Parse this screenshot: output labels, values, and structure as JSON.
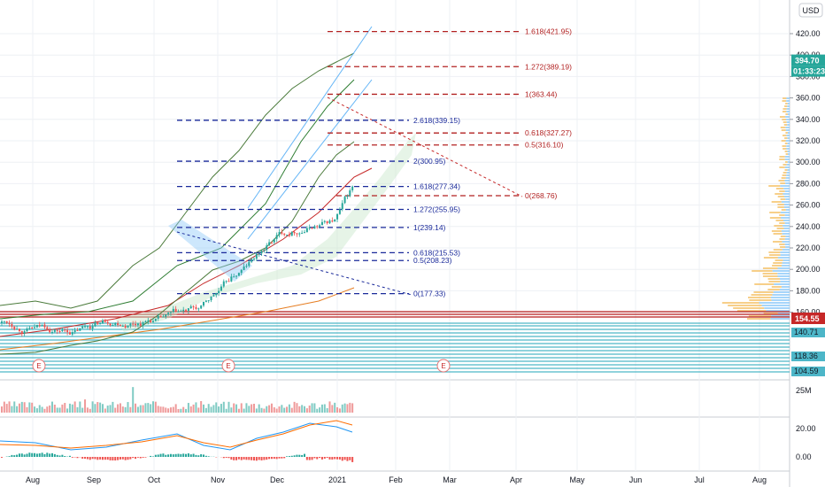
{
  "currency_label": "USD",
  "price_axis": {
    "ticks": [
      "420.00",
      "400.00",
      "380.00",
      "360.00",
      "340.00",
      "320.00",
      "300.00",
      "280.00",
      "260.00",
      "240.00",
      "220.00",
      "200.00",
      "180.00",
      "160.00"
    ],
    "tag_last": "394.70",
    "tag_timer": "01:33:23",
    "tag_level_mid": "154.55",
    "profile_labels": [
      "140.71",
      "118.36",
      "104.59"
    ]
  },
  "volume_axis": {
    "tick": "25M"
  },
  "macd_axis": {
    "ticks": [
      "20.00",
      "0.00"
    ]
  },
  "x_axis": {
    "labels": [
      "Aug",
      "Sep",
      "Oct",
      "Nov",
      "Dec",
      "2021",
      "Feb",
      "Mar",
      "Apr",
      "May",
      "Jun",
      "Jul",
      "Aug"
    ]
  },
  "events": [
    "E",
    "E",
    "E"
  ],
  "colors": {
    "up": "#26a69a",
    "down": "#ef5350",
    "fib_red": "#b22222",
    "fib_blue": "#1a2a9a",
    "bb": "#4a7a3a",
    "channel": "#64b5f6"
  },
  "chart_data": {
    "type": "candlestick",
    "fib_red": [
      {
        "label": "1.618(421.95)",
        "value": 421.95
      },
      {
        "label": "1.272(389.19)",
        "value": 389.19
      },
      {
        "label": "1(363.44)",
        "value": 363.44
      },
      {
        "label": "0.618(327.27)",
        "value": 327.27
      },
      {
        "label": "0.5(316.10)",
        "value": 316.1
      },
      {
        "label": "0(268.76)",
        "value": 268.76
      }
    ],
    "fib_blue": [
      {
        "label": "2.618(339.15)",
        "value": 339.15
      },
      {
        "label": "2(300.95)",
        "value": 300.95
      },
      {
        "label": "1.618(277.34)",
        "value": 277.34
      },
      {
        "label": "1.272(255.95)",
        "value": 255.95
      },
      {
        "label": "1(239.14)",
        "value": 239.14
      },
      {
        "label": "0.618(215.53)",
        "value": 215.53
      },
      {
        "label": "0.5(208.23)",
        "value": 208.23
      },
      {
        "label": "0(177.33)",
        "value": 177.33
      }
    ],
    "last_price": 394.7
  }
}
